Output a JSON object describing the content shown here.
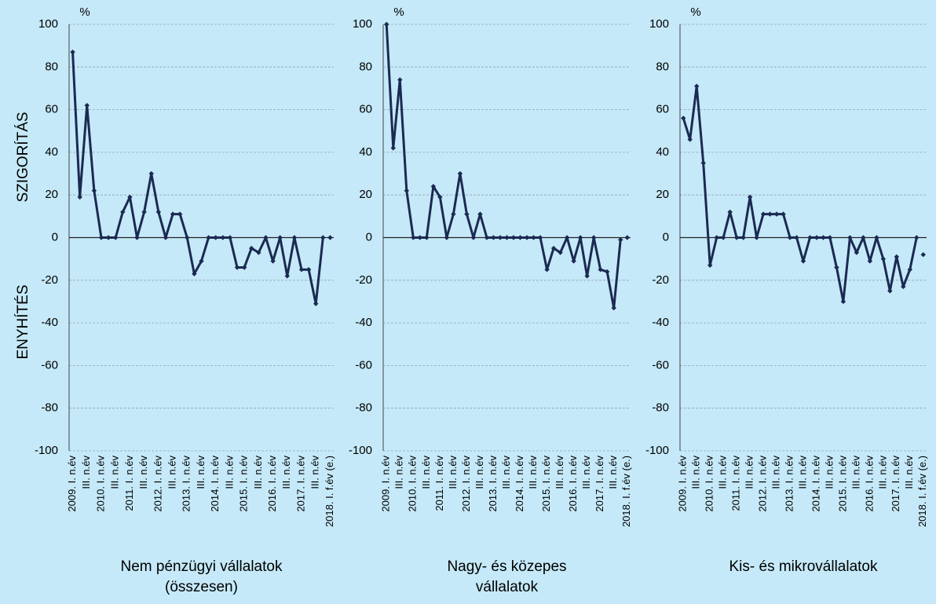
{
  "chart_data": [
    {
      "type": "line",
      "title": [
        "Nem pénzügyi vállalatok",
        "(összesen)"
      ],
      "unit": "%",
      "ylabel_top": "SZIGORÍTÁS",
      "ylabel_bottom": "ENYHÍTÉS",
      "categories": [
        "2009. I. n.év",
        null,
        "III. n.év",
        null,
        "2010. I. n.év",
        null,
        "III. n.év",
        null,
        "2011. I. n.év",
        null,
        "III. n.év",
        null,
        "2012. I. n.év",
        null,
        "III. n.év",
        null,
        "2013. I. n.év",
        null,
        "III. n.év",
        null,
        "2014. I. n.év",
        null,
        "III. n.év",
        null,
        "2015. I. n.év",
        null,
        "III. n.év",
        null,
        "2016. I. n.év",
        null,
        "III. n.év",
        null,
        "2017. I. n.év",
        null,
        "III. n.év",
        null,
        "2018. I. f.év (e.)"
      ],
      "series": [
        {
          "color": "#1b2a52",
          "values": [
            87,
            19,
            62,
            22,
            0,
            0,
            0,
            12,
            19,
            0,
            12,
            30,
            12,
            0,
            11,
            11,
            0,
            -17,
            -11,
            0,
            0,
            0,
            0,
            -14,
            -14,
            -5,
            -7,
            0,
            -11,
            0,
            -18,
            0,
            -15,
            -15,
            -31,
            0,
            null
          ]
        },
        {
          "color": "#1b2a52",
          "marker_only": true,
          "values": [
            null,
            null,
            null,
            null,
            null,
            null,
            null,
            null,
            null,
            null,
            null,
            null,
            null,
            null,
            null,
            null,
            null,
            null,
            null,
            null,
            null,
            null,
            null,
            null,
            null,
            null,
            null,
            null,
            null,
            null,
            null,
            null,
            null,
            null,
            null,
            null,
            0
          ]
        }
      ],
      "ylim": [
        -100,
        100
      ],
      "yticks": [
        -100,
        -80,
        -60,
        -40,
        -20,
        0,
        20,
        40,
        60,
        80,
        100
      ],
      "grid": true
    },
    {
      "type": "line",
      "title": [
        "Nagy- és közepes",
        "vállalatok"
      ],
      "unit": "%",
      "categories": [
        "2009. I. n.év",
        null,
        "III. n.év",
        null,
        "2010. I. n.év",
        null,
        "III. n.év",
        null,
        "2011. I. n.év",
        null,
        "III. n.év",
        null,
        "2012. I. n.év",
        null,
        "III. n.év",
        null,
        "2013. I. n.év",
        null,
        "III. n.év",
        null,
        "2014. I. n.év",
        null,
        "III. n.év",
        null,
        "2015. I. n.év",
        null,
        "III. n.év",
        null,
        "2016. I. n.év",
        null,
        "III. n.év",
        null,
        "2017. I. n.év",
        null,
        "III. n.év",
        null,
        "2018. I. f.év (e.)"
      ],
      "series": [
        {
          "color": "#1b2a52",
          "values": [
            100,
            42,
            74,
            22,
            0,
            0,
            0,
            24,
            19,
            0,
            11,
            30,
            11,
            0,
            11,
            0,
            0,
            0,
            0,
            0,
            0,
            0,
            0,
            0,
            -15,
            -5,
            -7,
            0,
            -11,
            0,
            -18,
            0,
            -15,
            -16,
            -33,
            -1,
            null
          ]
        },
        {
          "color": "#1b2a52",
          "marker_only": true,
          "values": [
            null,
            null,
            null,
            null,
            null,
            null,
            null,
            null,
            null,
            null,
            null,
            null,
            null,
            null,
            null,
            null,
            null,
            null,
            null,
            null,
            null,
            null,
            null,
            null,
            null,
            null,
            null,
            null,
            null,
            null,
            null,
            null,
            null,
            null,
            null,
            null,
            0
          ]
        }
      ],
      "ylim": [
        -100,
        100
      ],
      "yticks": [
        -100,
        -80,
        -60,
        -40,
        -20,
        0,
        20,
        40,
        60,
        80,
        100
      ],
      "grid": true
    },
    {
      "type": "line",
      "title": [
        "Kis- és mikrovállalatok"
      ],
      "unit": "%",
      "categories": [
        "2009. I. n.év",
        null,
        "III. n.év",
        null,
        "2010. I. n.év",
        null,
        "III. n.év",
        null,
        "2011. I. n.év",
        null,
        "III. n.év",
        null,
        "2012. I. n.év",
        null,
        "III. n.év",
        null,
        "2013. I. n.év",
        null,
        "III. n.év",
        null,
        "2014. I. n.év",
        null,
        "III. n.év",
        null,
        "2015. I. n.év",
        null,
        "III. n.év",
        null,
        "2016. I. n.év",
        null,
        "III. n.év",
        null,
        "2017. I. n.év",
        null,
        "III. n.év",
        null,
        "2018. I. f.év (e.)"
      ],
      "series": [
        {
          "color": "#1b2a52",
          "values": [
            56,
            46,
            71,
            35,
            -13,
            0,
            0,
            12,
            0,
            0,
            19,
            0,
            11,
            11,
            11,
            11,
            0,
            0,
            -11,
            0,
            0,
            0,
            0,
            -14,
            -30,
            0,
            -7,
            0,
            -11,
            0,
            -10,
            -25,
            -9,
            -23,
            -15,
            0,
            null
          ]
        },
        {
          "color": "#1b2a52",
          "marker_only": true,
          "values": [
            null,
            null,
            null,
            null,
            null,
            null,
            null,
            null,
            null,
            null,
            null,
            null,
            null,
            null,
            null,
            null,
            null,
            null,
            null,
            null,
            null,
            null,
            null,
            null,
            null,
            null,
            null,
            null,
            null,
            null,
            null,
            null,
            null,
            null,
            null,
            null,
            -8
          ]
        }
      ],
      "ylim": [
        -100,
        100
      ],
      "yticks": [
        -100,
        -80,
        -60,
        -40,
        -20,
        0,
        20,
        40,
        60,
        80,
        100
      ],
      "grid": true
    }
  ]
}
